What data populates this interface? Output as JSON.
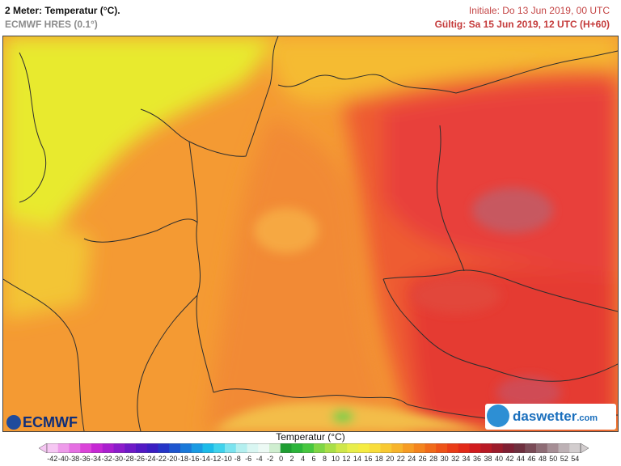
{
  "header": {
    "title": "2 Meter: Temperatur (°C).",
    "model": "ECMWF HRES (0.1°)",
    "initial": "Initiale: Do 13 Jun 2019, 00 UTC",
    "valid": "Gültig: Sa 15 Jun 2019, 12 UTC (H+60)"
  },
  "logos": {
    "left": "ECMWF",
    "right_main": "daswetter",
    "right_suffix": ".com"
  },
  "colorbar": {
    "title": "Temperatur (°C)",
    "ticks": [
      "-42",
      "-40",
      "-38",
      "-36",
      "-34",
      "-32",
      "-30",
      "-28",
      "-26",
      "-24",
      "-22",
      "-20",
      "-18",
      "-16",
      "-14",
      "-12",
      "-10",
      "-8",
      "-6",
      "-4",
      "-2",
      "0",
      "2",
      "4",
      "6",
      "8",
      "10",
      "12",
      "14",
      "16",
      "18",
      "20",
      "22",
      "24",
      "26",
      "28",
      "30",
      "32",
      "34",
      "36",
      "38",
      "40",
      "42",
      "44",
      "46",
      "48",
      "50",
      "52",
      "54"
    ],
    "colors": [
      "#f6c7f3",
      "#ee9bea",
      "#e56fe2",
      "#db44d9",
      "#c628d4",
      "#aa1fcf",
      "#8c1ccb",
      "#6e1ac7",
      "#5219c4",
      "#3a1ec2",
      "#2535c7",
      "#1e56cf",
      "#1a79d9",
      "#1a9be3",
      "#1cbbe9",
      "#3fd2ec",
      "#7be3ef",
      "#b4efef",
      "#d9f6f2",
      "#ecf9f4",
      "#cfeed0",
      "#1f9e32",
      "#2bb53a",
      "#47c73f",
      "#7fd645",
      "#a9df48",
      "#cfe74a",
      "#e8ee4b",
      "#f5ec42",
      "#f8dd3b",
      "#f8c932",
      "#f7b42b",
      "#f69c24",
      "#f4841e",
      "#f16b1a",
      "#ee5318",
      "#ea3c17",
      "#e22a18",
      "#d11c1e",
      "#b81a25",
      "#9c1b2b",
      "#7f1f33",
      "#6e2f3e",
      "#7a4b57",
      "#8e6c75",
      "#a68e95",
      "#bdb1b5",
      "#d2cdce"
    ]
  },
  "map": {
    "region": "Central Europe",
    "colors": {
      "very_cool": "#e6ea2c",
      "cool": "#f2c832",
      "mild": "#f5a033",
      "warm": "#f07f35",
      "hot": "#ec5530",
      "very_hot": "#e63a35",
      "hottest": "#c8595f",
      "alpine": "#f1c24a",
      "border": "#333333"
    }
  }
}
